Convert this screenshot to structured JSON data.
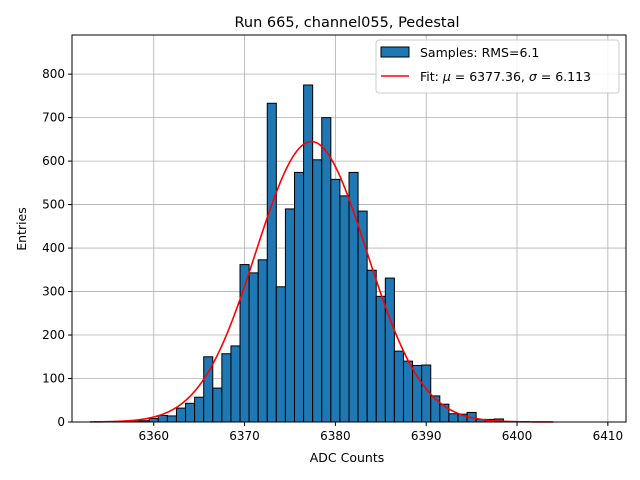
{
  "chart_data": {
    "type": "bar",
    "title": "Run 665, channel055, Pedestal",
    "xlabel": "ADC Counts",
    "ylabel": "Entries",
    "xlim": [
      6351,
      6412
    ],
    "ylim": [
      0,
      890
    ],
    "xticks": [
      6360,
      6370,
      6380,
      6390,
      6400,
      6410
    ],
    "yticks": [
      0,
      100,
      200,
      300,
      400,
      500,
      600,
      700,
      800
    ],
    "grid": true,
    "legend_position": "top-right",
    "bin_width": 1,
    "bins": [
      6353,
      6354,
      6355,
      6356,
      6357,
      6358,
      6359,
      6360,
      6361,
      6362,
      6363,
      6364,
      6365,
      6366,
      6367,
      6368,
      6369,
      6370,
      6371,
      6372,
      6373,
      6374,
      6375,
      6376,
      6377,
      6378,
      6379,
      6380,
      6381,
      6382,
      6383,
      6384,
      6385,
      6386,
      6387,
      6388,
      6389,
      6390,
      6391,
      6392,
      6393,
      6394,
      6395,
      6396,
      6397,
      6398,
      6399,
      6400
    ],
    "series": [
      {
        "name": "Samples: RMS=6.1",
        "kind": "histogram",
        "color": "#1f77b4",
        "edgecolor": "#000000",
        "values": [
          0,
          0,
          0,
          1,
          1,
          2,
          3,
          8,
          15,
          14,
          32,
          43,
          57,
          150,
          78,
          157,
          175,
          362,
          343,
          373,
          733,
          311,
          490,
          574,
          775,
          603,
          700,
          558,
          520,
          574,
          485,
          349,
          289,
          331,
          163,
          140,
          130,
          131,
          60,
          41,
          19,
          18,
          22,
          6,
          6,
          7,
          1,
          1
        ]
      },
      {
        "name": "Fit: $\\mu$ = 6377.36, $\\sigma$ = 6.113",
        "kind": "gaussian-fit",
        "color": "#ff0000",
        "mu": 6377.36,
        "sigma": 6.113,
        "amplitude": 645,
        "x_range": [
          6353,
          6404
        ]
      }
    ]
  }
}
